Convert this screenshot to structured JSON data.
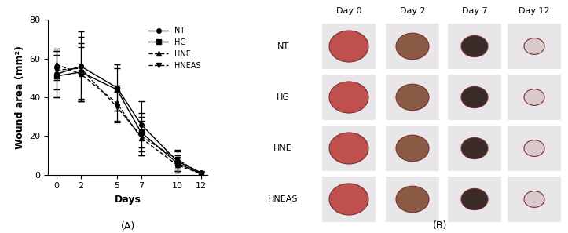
{
  "chart_data": {
    "type": "line",
    "x_label": "Days",
    "y_label": "Wound area (mm²)",
    "x": [
      0,
      2,
      5,
      7,
      10,
      12
    ],
    "xlim": [
      -0.7,
      12.5
    ],
    "xticks": [
      0,
      2,
      5,
      7,
      10,
      12
    ],
    "ylim": [
      0,
      80
    ],
    "yticks": [
      0,
      20,
      40,
      60,
      80
    ],
    "grid": false,
    "legend": "upper right",
    "series": [
      {
        "name": "NT",
        "color": "#000000",
        "marker": "circle",
        "line_style": "solid",
        "values": [
          52,
          56,
          45,
          26,
          7,
          1
        ],
        "errors": [
          12,
          18,
          12,
          12,
          5,
          1
        ]
      },
      {
        "name": "HG",
        "color": "#000000",
        "marker": "square",
        "line_style": "solid",
        "values": [
          51,
          53,
          44,
          22,
          6,
          0.5
        ],
        "errors": [
          11,
          15,
          11,
          10,
          4,
          1
        ]
      },
      {
        "name": "HNE",
        "color": "#000000",
        "marker": "triangle_up",
        "line_style": "dashed",
        "values": [
          57,
          52,
          37,
          19,
          5,
          0.5
        ],
        "errors": [
          8,
          14,
          9,
          9,
          4,
          1
        ]
      },
      {
        "name": "HNEAS",
        "color": "#000000",
        "marker": "triangle_down",
        "line_style": "dashed",
        "values": [
          54,
          55,
          35,
          20,
          8,
          0.5
        ],
        "errors": [
          10,
          16,
          8,
          10,
          5,
          1
        ]
      }
    ]
  },
  "panel_labels": [
    "(A)",
    "(B)"
  ],
  "photo_grid": {
    "columns": [
      "Day 0",
      "Day 2",
      "Day 7",
      "Day 12"
    ],
    "rows": [
      "NT",
      "HG",
      "HNE",
      "HNEAS"
    ]
  }
}
